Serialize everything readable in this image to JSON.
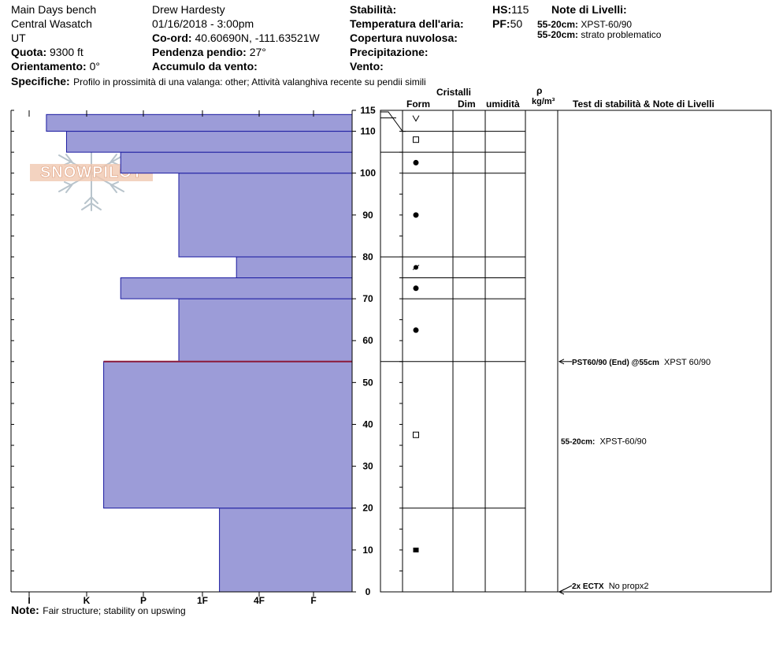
{
  "header": {
    "site": "Main Days bench",
    "range": "Central Wasatch",
    "state": "UT",
    "elevation_label": "Quota:",
    "elevation": "9300 ft",
    "aspect_label": "Orientamento:",
    "aspect": "0°",
    "observer": "Drew Hardesty",
    "datetime": "01/16/2018 - 3:00pm",
    "coord_label": "Co-ord:",
    "coord": "40.60690N, -111.63521W",
    "slope_label": "Pendenza pendio:",
    "slope": "27°",
    "wind_loading_label": "Accumulo da vento:",
    "stability_label": "Stabilità:",
    "air_temp_label": "Temperatura dell'aria:",
    "sky_label": "Copertura nuvolosa:",
    "precip_label": "Precipitazione:",
    "wind_label": "Vento:",
    "hs_label": "HS:",
    "hs": "115",
    "pf_label": "PF:",
    "pf": "50",
    "layer_notes_label": "Note di Livelli:",
    "layer_note1_key": "55-20cm:",
    "layer_note1_val": "XPST-60/90",
    "layer_note2_key": "55-20cm:",
    "layer_note2_val": "strato problematico",
    "specifics_label": "Specifiche:",
    "specifics": "Profilo in prossimità di una valanga: other; Attività valanghiva recente su pendii simili"
  },
  "columns": {
    "crystals": "Cristalli",
    "form": "Form",
    "dim": "Dim",
    "moisture": "umidità",
    "rho": "ρ",
    "density_unit": "kg/m³",
    "stability_notes": "Test di stabilità & Note di Livelli"
  },
  "footer": {
    "note_label": "Note:",
    "note": "Fair structure; stability on upswing"
  },
  "logo_text": "SNOWPILOT",
  "colors": {
    "hardness_fill": "#9c9cd8",
    "hardness_stroke": "#1a1aa0",
    "weak_layer": "#8b1a3a"
  },
  "chart_data": {
    "type": "bar",
    "orientation": "horizontal",
    "height_axis_ticks": [
      0,
      10,
      20,
      30,
      40,
      50,
      60,
      70,
      80,
      90,
      100,
      110,
      115
    ],
    "height_axis_range": [
      0,
      115
    ],
    "hardness_ticks": [
      "I",
      "K",
      "P",
      "1F",
      "4F",
      "F"
    ],
    "hardness_layers": [
      {
        "bottom": 0,
        "top": 20,
        "hardness": 3.3
      },
      {
        "bottom": 20,
        "top": 55,
        "hardness": 1.3
      },
      {
        "bottom": 55,
        "top": 70,
        "hardness": 2.6
      },
      {
        "bottom": 70,
        "top": 75,
        "hardness": 1.6
      },
      {
        "bottom": 75,
        "top": 80,
        "hardness": 3.6
      },
      {
        "bottom": 80,
        "top": 100,
        "hardness": 2.6
      },
      {
        "bottom": 100,
        "top": 105,
        "hardness": 1.6
      },
      {
        "bottom": 105,
        "top": 110,
        "hardness": 0.65
      },
      {
        "bottom": 110,
        "top": 114,
        "hardness": 0.3
      }
    ],
    "weak_layer_height": 55,
    "layer_boundaries": [
      0,
      20,
      55,
      70,
      75,
      80,
      100,
      105,
      110,
      115
    ],
    "crystal_symbols": [
      {
        "height": 113,
        "symbol": "v"
      },
      {
        "height": 108,
        "symbol": "open-square"
      },
      {
        "height": 102.5,
        "symbol": "dot"
      },
      {
        "height": 90,
        "symbol": "dot"
      },
      {
        "height": 77.5,
        "symbol": "slashed-dot"
      },
      {
        "height": 72.5,
        "symbol": "dot"
      },
      {
        "height": 62.5,
        "symbol": "dot"
      },
      {
        "height": 37.5,
        "symbol": "open-square"
      },
      {
        "height": 10,
        "symbol": "filled-square"
      }
    ],
    "stability_tests": [
      {
        "height": 55,
        "label": "PST60/90 (End) @55cm",
        "result": "XPST 60/90",
        "arrow": true
      },
      {
        "height": 36,
        "label": "55-20cm:",
        "result": "XPST-60/90",
        "arrow": false
      },
      {
        "height": 0,
        "label": "2x ECTX",
        "result": "No propx2",
        "arrow": true
      }
    ]
  }
}
